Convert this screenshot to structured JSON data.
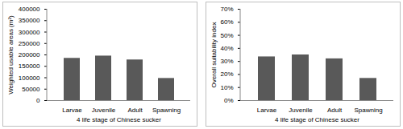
{
  "chart_data": [
    {
      "type": "bar",
      "categories": [
        "Larvae",
        "Juvenile",
        "Adult",
        "Spawning"
      ],
      "values": [
        185000,
        195000,
        178000,
        97000
      ],
      "color": "#595959",
      "xlabel": "4 life stage of Chinese sucker",
      "ylabel": "Weighted usable areas (m²)",
      "ylim": [
        0,
        400000
      ],
      "yticks": [
        0,
        50000,
        100000,
        150000,
        200000,
        250000,
        300000,
        350000,
        400000
      ],
      "grid": false
    },
    {
      "type": "bar",
      "categories": [
        "Larvae",
        "Juvenile",
        "Adult",
        "Spawning"
      ],
      "values": [
        33.5,
        35,
        32,
        17
      ],
      "color": "#595959",
      "xlabel": "4 life stage of Chinese sucker",
      "ylabel": "Overall suitability index",
      "ylim": [
        0,
        70
      ],
      "yticks": [
        {
          "value": 0,
          "label": "0%"
        },
        {
          "value": 10,
          "label": "10%"
        },
        {
          "value": 20,
          "label": "20%"
        },
        {
          "value": 30,
          "label": "30%"
        },
        {
          "value": 40,
          "label": "40%"
        },
        {
          "value": 50,
          "label": "50%"
        },
        {
          "value": 60,
          "label": "60%"
        },
        {
          "value": 70,
          "label": "70%"
        }
      ],
      "grid": false
    }
  ]
}
